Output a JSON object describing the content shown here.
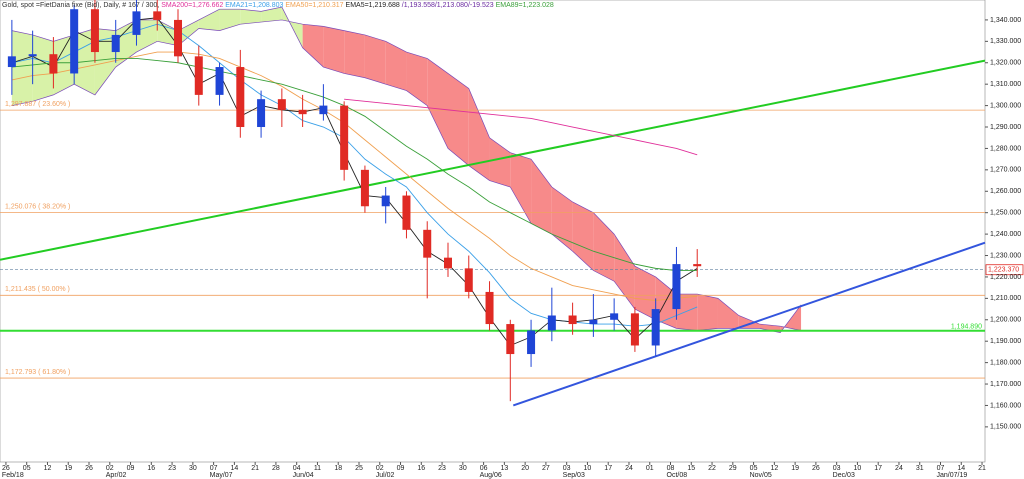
{
  "chart_data": {
    "type": "candlestick",
    "title": "Gold, spot =FietDania fixe (Bid), Daily, # 167 / 300,",
    "ichimoku_label": "/1,193.558/1,213.080/-19.523",
    "ichimoku_label_color": "#6a2aa0",
    "xlim": [
      "2018-02-24",
      "2019-01-22"
    ],
    "ylim": [
      1133.6,
      1349.3
    ],
    "up_color": "#1f45d6",
    "down_color": "#e02a24",
    "x": [
      "2018-02-28",
      "2018-03-07",
      "2018-03-14",
      "2018-03-21",
      "2018-03-28",
      "2018-04-04",
      "2018-04-11",
      "2018-04-18",
      "2018-04-25",
      "2018-05-02",
      "2018-05-09",
      "2018-05-16",
      "2018-05-23",
      "2018-05-30",
      "2018-06-06",
      "2018-06-13",
      "2018-06-20",
      "2018-06-27",
      "2018-07-04",
      "2018-07-11",
      "2018-07-18",
      "2018-07-25",
      "2018-08-01",
      "2018-08-08",
      "2018-08-15",
      "2018-08-22",
      "2018-08-29",
      "2018-09-05",
      "2018-09-12",
      "2018-09-19",
      "2018-09-26",
      "2018-10-03",
      "2018-10-10",
      "2018-10-17"
    ],
    "open": [
      1318,
      1323,
      1324,
      1315,
      1345,
      1325,
      1333,
      1344,
      1340,
      1323,
      1305,
      1318,
      1290,
      1303,
      1298,
      1296,
      1300,
      1270,
      1253,
      1258,
      1242,
      1229,
      1224,
      1213,
      1198,
      1184,
      1195,
      1202,
      1198,
      1200,
      1203,
      1188,
      1205,
      1226
    ],
    "high": [
      1340,
      1335,
      1332,
      1347,
      1350,
      1340,
      1350,
      1350,
      1345,
      1328,
      1320,
      1326,
      1307,
      1308,
      1305,
      1310,
      1302,
      1272,
      1262,
      1260,
      1246,
      1236,
      1230,
      1218,
      1200,
      1200,
      1215,
      1208,
      1212,
      1210,
      1206,
      1210,
      1234,
      1233
    ],
    "low": [
      1305,
      1310,
      1308,
      1310,
      1320,
      1320,
      1328,
      1335,
      1320,
      1300,
      1300,
      1285,
      1285,
      1290,
      1290,
      1293,
      1265,
      1250,
      1245,
      1238,
      1210,
      1220,
      1210,
      1195,
      1162,
      1178,
      1190,
      1193,
      1192,
      1195,
      1185,
      1183,
      1200,
      1220
    ],
    "close": [
      1323,
      1324,
      1315,
      1345,
      1325,
      1333,
      1344,
      1340,
      1323,
      1305,
      1318,
      1290,
      1303,
      1298,
      1296,
      1300,
      1270,
      1253,
      1258,
      1242,
      1229,
      1224,
      1213,
      1198,
      1184,
      1195,
      1202,
      1198,
      1200,
      1203,
      1188,
      1205,
      1226,
      1225
    ],
    "series": [
      {
        "name": "SMA200=1,276.662",
        "color": "#e0309a",
        "values": [
          null,
          null,
          null,
          null,
          null,
          null,
          null,
          null,
          null,
          null,
          null,
          null,
          null,
          null,
          null,
          null,
          1303,
          1302,
          1301,
          1300,
          1299,
          1298,
          1297,
          1296,
          1295,
          1294,
          1292,
          1290,
          1288,
          1286,
          1284,
          1282,
          1280,
          1277
        ]
      },
      {
        "name": "EMA21=1,208.803",
        "color": "#3aa0e8",
        "values": [
          1320,
          1322,
          1320,
          1325,
          1330,
          1332,
          1335,
          1338,
          1335,
          1328,
          1320,
          1312,
          1305,
          1300,
          1293,
          1290,
          1285,
          1275,
          1268,
          1262,
          1250,
          1240,
          1232,
          1222,
          1210,
          1203,
          1200,
          1199,
          1198,
          1198,
          1197,
          1198,
          1202,
          1206
        ]
      },
      {
        "name": "EMA50=1,210.317",
        "color": "#f0a050",
        "values": [
          1312,
          1314,
          1315,
          1317,
          1319,
          1321,
          1323,
          1325,
          1325,
          1324,
          1322,
          1318,
          1314,
          1309,
          1303,
          1298,
          1292,
          1284,
          1276,
          1268,
          1260,
          1252,
          1245,
          1238,
          1230,
          1224,
          1220,
          1216,
          1214,
          1212,
          1210,
          1209,
          1210,
          1211
        ]
      },
      {
        "name": "EMA5=1,219.688",
        "color": "#222222",
        "values": [
          1320,
          1323,
          1318,
          1335,
          1330,
          1330,
          1340,
          1341,
          1328,
          1310,
          1315,
          1295,
          1300,
          1298,
          1297,
          1299,
          1278,
          1258,
          1257,
          1245,
          1232,
          1226,
          1216,
          1201,
          1188,
          1192,
          1200,
          1199,
          1200,
          1202,
          1191,
          1200,
          1218,
          1224
        ]
      },
      {
        "name": "EMA89=1,223.028",
        "color": "#3aa03a",
        "values": [
          1318,
          1319,
          1320,
          1320,
          1321,
          1322,
          1322,
          1321,
          1320,
          1318,
          1316,
          1314,
          1312,
          1310,
          1307,
          1304,
          1300,
          1295,
          1288,
          1281,
          1275,
          1268,
          1262,
          1255,
          1250,
          1245,
          1240,
          1236,
          1232,
          1229,
          1226,
          1224,
          1223,
          1223
        ]
      }
    ],
    "cloud": {
      "up_color": "#d8f2a8",
      "down_color": "#f78a8a",
      "edge_color": "#7a4ab8",
      "x": [
        "2018-02-28",
        "2018-03-07",
        "2018-03-14",
        "2018-03-21",
        "2018-03-28",
        "2018-04-04",
        "2018-04-11",
        "2018-04-18",
        "2018-04-25",
        "2018-05-02",
        "2018-05-09",
        "2018-05-16",
        "2018-05-23",
        "2018-05-30",
        "2018-06-06",
        "2018-06-13",
        "2018-06-20",
        "2018-06-27",
        "2018-07-04",
        "2018-07-11",
        "2018-07-18",
        "2018-07-25",
        "2018-08-01",
        "2018-08-08",
        "2018-08-15",
        "2018-08-22",
        "2018-08-29",
        "2018-09-05",
        "2018-09-12",
        "2018-09-19",
        "2018-09-26",
        "2018-10-03",
        "2018-10-10",
        "2018-10-17",
        "2018-10-24",
        "2018-10-31",
        "2018-11-07",
        "2018-11-14",
        "2018-11-21"
      ],
      "span_a": [
        1335,
        1333,
        1330,
        1333,
        1336,
        1335,
        1340,
        1340,
        1335,
        1340,
        1345,
        1345,
        1344,
        1346,
        1327,
        1318,
        1315,
        1313,
        1310,
        1307,
        1300,
        1280,
        1272,
        1265,
        1262,
        1245,
        1240,
        1232,
        1223,
        1218,
        1205,
        1200,
        1196,
        1195,
        1196,
        1196,
        1196,
        1194,
        1207
      ],
      "span_b": [
        1300,
        1302,
        1305,
        1310,
        1305,
        1318,
        1325,
        1330,
        1328,
        1336,
        1335,
        1338,
        1339,
        1340,
        1338,
        1337,
        1335,
        1333,
        1330,
        1325,
        1322,
        1315,
        1308,
        1285,
        1278,
        1275,
        1262,
        1255,
        1250,
        1240,
        1225,
        1220,
        1212,
        1212,
        1210,
        1202,
        1198,
        1197,
        1195
      ]
    },
    "fib_color": "#f0a060",
    "fib_levels": [
      {
        "value": 1297.887,
        "label": "1,297.887 ( 23.60% )"
      },
      {
        "value": 1250.076,
        "label": "1,250.076 ( 38.20% )"
      },
      {
        "value": 1211.435,
        "label": "1,211.435 ( 50.00% )"
      },
      {
        "value": 1172.793,
        "label": "1,172.793 ( 61.80% )"
      }
    ],
    "support": {
      "value": 1194.89,
      "label": "1,194.890",
      "color": "#33dd33"
    },
    "last_price": {
      "value": 1223.37,
      "label": "1,223.370",
      "color": "#e02a24"
    },
    "trendlines": [
      {
        "color": "#22cc22",
        "x": [
          "2018-02-24",
          "2019-01-22"
        ],
        "values": [
          1228,
          1321
        ]
      },
      {
        "color": "#3355dd",
        "x": [
          "2018-08-16",
          "2019-01-22"
        ],
        "values": [
          1160,
          1236
        ]
      }
    ],
    "yticks": [
      {
        "value": 1150,
        "label": "1,150.000"
      },
      {
        "value": 1160,
        "label": "1,160.000"
      },
      {
        "value": 1170,
        "label": "1,170.000"
      },
      {
        "value": 1180,
        "label": "1,180.000"
      },
      {
        "value": 1190,
        "label": "1,190.000"
      },
      {
        "value": 1200,
        "label": "1,200.000"
      },
      {
        "value": 1210,
        "label": "1,210.000"
      },
      {
        "value": 1220,
        "label": "1,220.000"
      },
      {
        "value": 1230,
        "label": "1,230.000"
      },
      {
        "value": 1240,
        "label": "1,240.000"
      },
      {
        "value": 1250,
        "label": "1,250.000"
      },
      {
        "value": 1260,
        "label": "1,260.000"
      },
      {
        "value": 1270,
        "label": "1,270.000"
      },
      {
        "value": 1280,
        "label": "1,280.000"
      },
      {
        "value": 1290,
        "label": "1,290.000"
      },
      {
        "value": 1300,
        "label": "1,300.000"
      },
      {
        "value": 1310,
        "label": "1,310.000"
      },
      {
        "value": 1320,
        "label": "1,320.000"
      },
      {
        "value": 1330,
        "label": "1,330.000"
      },
      {
        "value": 1340,
        "label": "1,340.000"
      }
    ],
    "xticks": [
      {
        "value": "2018-02-26",
        "label": "26"
      },
      {
        "value": "2018-03-05",
        "label": "05"
      },
      {
        "value": "2018-03-12",
        "label": "12"
      },
      {
        "value": "2018-03-19",
        "label": "19"
      },
      {
        "value": "2018-03-26",
        "label": "26"
      },
      {
        "value": "2018-04-02",
        "label": "02"
      },
      {
        "value": "2018-04-09",
        "label": "09"
      },
      {
        "value": "2018-04-16",
        "label": "16"
      },
      {
        "value": "2018-04-23",
        "label": "23"
      },
      {
        "value": "2018-04-30",
        "label": "30"
      },
      {
        "value": "2018-05-07",
        "label": "07"
      },
      {
        "value": "2018-05-14",
        "label": "14"
      },
      {
        "value": "2018-05-21",
        "label": "21"
      },
      {
        "value": "2018-05-28",
        "label": "28"
      },
      {
        "value": "2018-06-04",
        "label": "04"
      },
      {
        "value": "2018-06-11",
        "label": "11"
      },
      {
        "value": "2018-06-18",
        "label": "18"
      },
      {
        "value": "2018-06-25",
        "label": "25"
      },
      {
        "value": "2018-07-02",
        "label": "02"
      },
      {
        "value": "2018-07-09",
        "label": "09"
      },
      {
        "value": "2018-07-16",
        "label": "16"
      },
      {
        "value": "2018-07-23",
        "label": "23"
      },
      {
        "value": "2018-07-30",
        "label": "30"
      },
      {
        "value": "2018-08-06",
        "label": "06"
      },
      {
        "value": "2018-08-13",
        "label": "13"
      },
      {
        "value": "2018-08-20",
        "label": "20"
      },
      {
        "value": "2018-08-27",
        "label": "27"
      },
      {
        "value": "2018-09-03",
        "label": "03"
      },
      {
        "value": "2018-09-10",
        "label": "10"
      },
      {
        "value": "2018-09-17",
        "label": "17"
      },
      {
        "value": "2018-09-24",
        "label": "24"
      },
      {
        "value": "2018-10-01",
        "label": "01"
      },
      {
        "value": "2018-10-08",
        "label": "08"
      },
      {
        "value": "2018-10-15",
        "label": "15"
      },
      {
        "value": "2018-10-22",
        "label": "22"
      },
      {
        "value": "2018-10-29",
        "label": "29"
      },
      {
        "value": "2018-11-05",
        "label": "05"
      },
      {
        "value": "2018-11-12",
        "label": "12"
      },
      {
        "value": "2018-11-19",
        "label": "19"
      },
      {
        "value": "2018-11-26",
        "label": "26"
      },
      {
        "value": "2018-12-03",
        "label": "03"
      },
      {
        "value": "2018-12-10",
        "label": "10"
      },
      {
        "value": "2018-12-17",
        "label": "17"
      },
      {
        "value": "2018-12-24",
        "label": "24"
      },
      {
        "value": "2018-12-31",
        "label": "31"
      },
      {
        "value": "2019-01-07",
        "label": "07"
      },
      {
        "value": "2019-01-14",
        "label": "14"
      },
      {
        "value": "2019-01-21",
        "label": "21"
      }
    ],
    "xticks_major": [
      {
        "value": "2018-02-26",
        "label": "Feb/18"
      },
      {
        "value": "2018-04-02",
        "label": "Apr/02"
      },
      {
        "value": "2018-05-07",
        "label": "May/07"
      },
      {
        "value": "2018-06-04",
        "label": "Jun/04"
      },
      {
        "value": "2018-07-02",
        "label": "Jul/02"
      },
      {
        "value": "2018-08-06",
        "label": "Aug/06"
      },
      {
        "value": "2018-09-03",
        "label": "Sep/03"
      },
      {
        "value": "2018-10-08",
        "label": "Oct/08"
      },
      {
        "value": "2018-11-05",
        "label": "Nov/05"
      },
      {
        "value": "2018-12-03",
        "label": "Dec/03"
      },
      {
        "value": "2019-01-07",
        "label": "Jan/07/19"
      }
    ]
  }
}
